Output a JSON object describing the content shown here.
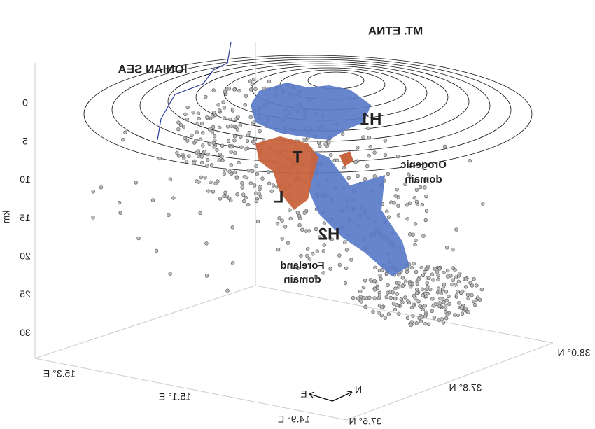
{
  "labels": {
    "volcano": "MT. ETNA",
    "sea": "IONIAN SEA",
    "h1": "H1",
    "t": "T",
    "l": "L",
    "h2": "H2",
    "orogenic": [
      "Orogenic",
      "domain"
    ],
    "foreland": [
      "Foreland",
      "domain"
    ]
  },
  "depth_axis": {
    "title": "km",
    "ticks": [
      "0",
      "5",
      "10",
      "15",
      "20",
      "25",
      "30"
    ]
  },
  "lon_axis": {
    "ticks": [
      "15.3° E",
      "15.1° E",
      "14.9° E"
    ]
  },
  "lat_axis": {
    "ticks": [
      "37.6° N",
      "37.8° N",
      "38.0° N"
    ]
  },
  "compass": {
    "east": "E",
    "north": "N"
  }
}
